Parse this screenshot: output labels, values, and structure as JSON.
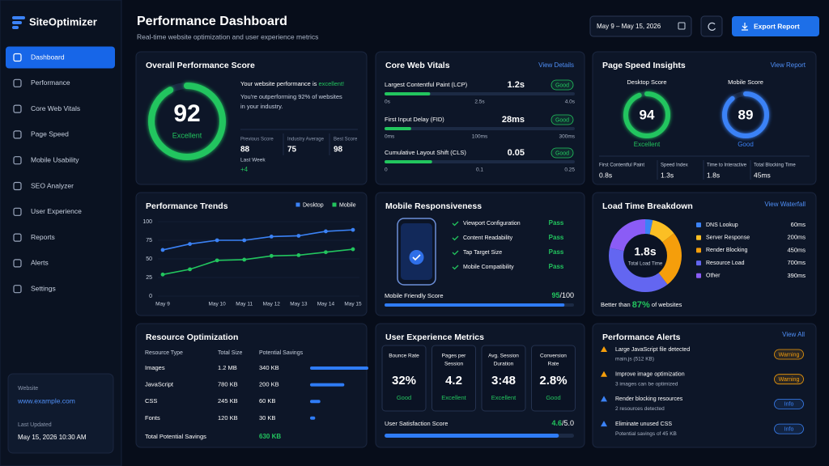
{
  "sidebar": {
    "brand": "SiteOptimizer",
    "menu": [
      "Dashboard",
      "Performance",
      "Core Web Vitals",
      "Page Speed",
      "Mobile Usability",
      "SEO Analyzer",
      "User Experience",
      "Reports",
      "Alerts",
      "Settings"
    ],
    "website_label": "Website",
    "website": "www.example.com",
    "updated_label": "Last Updated",
    "updated": "May 15, 2026  10:30 AM"
  },
  "header": {
    "title": "Performance Dashboard",
    "subtitle": "Real-time website optimization and user experience metrics",
    "date_range": "May 9 – May 15, 2026",
    "export": "Export Report"
  },
  "overall": {
    "title": "Overall Performance Score",
    "score": 92,
    "range": [
      0,
      100
    ],
    "color": "#22c55e",
    "rating": "Excellent",
    "message_lead": "Your website performance is ",
    "message_emphasis": "excellent!",
    "message": [
      "You're outperforming 92% of websites",
      "in your industry."
    ],
    "stats": [
      {
        "label": "Previous Score",
        "value": 88,
        "note": "Last Week"
      },
      {
        "label": "Industry Average",
        "value": 75
      },
      {
        "label": "Best Score",
        "value": 98
      }
    ],
    "change": "+4"
  },
  "core_web_vitals": {
    "title": "Core Web Vitals",
    "link": "View Details",
    "color": "#22c55e",
    "metrics": [
      {
        "name": "Largest Contentful Paint (LCP)",
        "value": 1.2,
        "value_label": "1.2s",
        "status": "Good",
        "ticks": [
          {
            "value": 0,
            "label": "0s"
          },
          {
            "value": 2.5,
            "label": "2.5s"
          },
          {
            "value": 4,
            "label": "4.0s"
          }
        ]
      },
      {
        "name": "First Input Delay (FID)",
        "value": 28,
        "value_label": "28ms",
        "status": "Good",
        "ticks": [
          {
            "value": 0,
            "label": "0ms"
          },
          {
            "value": 100,
            "label": "100ms"
          },
          {
            "value": 300,
            "label": "300ms"
          }
        ]
      },
      {
        "name": "Cumulative Layout Shift (CLS)",
        "value": 0.05,
        "status": "Good",
        "ticks": [
          0,
          0.1,
          0.25
        ]
      }
    ]
  },
  "page_speed": {
    "title": "Page Speed Insights",
    "link": "View Report",
    "range": [
      0,
      100
    ],
    "scores": [
      {
        "label": "Desktop Score",
        "score": 94,
        "rating": "Excellent",
        "color": "#22c55e"
      },
      {
        "label": "Mobile Score",
        "score": 89,
        "rating": "Good",
        "color": "#3b82f6"
      }
    ],
    "metrics": [
      {
        "label": "First Contentful Paint",
        "value": "0.8s"
      },
      {
        "label": "Speed Index",
        "value": "1.3s"
      },
      {
        "label": "Time to Interactive",
        "value": "1.8s"
      },
      {
        "label": "Total Blocking Time",
        "value": "45ms"
      }
    ]
  },
  "chart_data": [
    {
      "type": "line",
      "title": "Performance Trends",
      "categories": [
        "May 9",
        null,
        "May 10",
        "May 11",
        "May 12",
        "May 13",
        "May 14",
        "May 15"
      ],
      "series": [
        {
          "name": "Desktop",
          "color": "#3b82f6",
          "values": [
            62,
            70,
            75,
            75,
            80,
            81,
            87,
            89
          ]
        },
        {
          "name": "Mobile",
          "color": "#22c55e",
          "values": [
            29,
            36,
            48,
            49,
            54,
            55,
            59,
            63
          ]
        }
      ],
      "ylim": [
        0,
        100
      ],
      "yticks": [
        0,
        25,
        50,
        75,
        100
      ],
      "grid": true
    },
    {
      "type": "pie",
      "donut": true,
      "title": "Load Time Breakdown",
      "link": "View Waterfall",
      "center_value": "1.8s",
      "center_label": "Total Load Time",
      "categories": [
        "DNS Lookup",
        "Server Response",
        "Render Blocking",
        "Resource Load",
        "Other"
      ],
      "values": [
        60,
        200,
        450,
        700,
        390
      ],
      "value_labels": [
        "60ms",
        "200ms",
        "450ms",
        "700ms",
        "390ms"
      ],
      "colors": [
        "#3b82f6",
        "#fbbf24",
        "#f59e0b",
        "#6366f1",
        "#8b5cf6"
      ],
      "footer_lead": "Better than ",
      "footer_emphasis": "87%",
      "footer_tail": " of websites"
    }
  ],
  "mobile": {
    "title": "Mobile Responsiveness",
    "checks": [
      {
        "name": "Viewport Configuration",
        "status": "Pass"
      },
      {
        "name": "Content Readability",
        "status": "Pass"
      },
      {
        "name": "Tap Target Size",
        "status": "Pass"
      },
      {
        "name": "Mobile Compatibility",
        "status": "Pass"
      }
    ],
    "score_label": "Mobile Friendly Score",
    "score": 95,
    "score_max": {
      "value": 100,
      "label": "/100"
    },
    "color": "#2f7cf6"
  },
  "resource": {
    "title": "Resource Optimization",
    "columns": [
      "Resource Type",
      "Total Size",
      "Potential Savings"
    ],
    "rows": [
      [
        "Images",
        "1.2 MB"
      ],
      [
        "JavaScript",
        "780 KB"
      ],
      [
        "CSS",
        "245 KB"
      ],
      [
        "Fonts",
        "120 KB"
      ]
    ],
    "savings": {
      "values": [
        340,
        200,
        60,
        30
      ],
      "value_labels": [
        "340 KB",
        "200 KB",
        "60 KB",
        "30 KB"
      ]
    },
    "color": "#2f7cf6",
    "total_label": "Total Potential Savings",
    "total": "630 KB"
  },
  "ux": {
    "title": "User Experience Metrics",
    "cards": [
      {
        "label": [
          "Bounce Rate"
        ],
        "value": "32%",
        "status": "Good"
      },
      {
        "label": [
          "Pages per",
          "Session"
        ],
        "value": "4.2",
        "status": "Excellent"
      },
      {
        "label": [
          "Avg. Session",
          "Duration"
        ],
        "value": "3:48",
        "status": "Excellent"
      },
      {
        "label": [
          "Conversion",
          "Rate"
        ],
        "value": "2.8%",
        "status": "Good"
      }
    ],
    "satisfaction_label": "User Satisfaction Score",
    "satisfaction": 4.6,
    "satisfaction_max": {
      "value": 5,
      "label": "/5.0"
    },
    "color": "#2f7cf6"
  },
  "alerts": {
    "title": "Performance Alerts",
    "link": "View All",
    "items": [
      {
        "title": "Large JavaScript file detected",
        "detail": "main.js (512 KB)",
        "badge": "Warning",
        "color": "#f59e0b"
      },
      {
        "title": "Improve image optimization",
        "detail": "3 images can be optimized",
        "badge": "Warning",
        "color": "#f59e0b"
      },
      {
        "title": "Render blocking resources",
        "detail": "2 resources detected",
        "badge": "Info",
        "color": "#3b82f6"
      },
      {
        "title": "Eliminate unused CSS",
        "detail": "Potential savings of 45 KB",
        "badge": "Info",
        "color": "#3b82f6"
      }
    ]
  }
}
